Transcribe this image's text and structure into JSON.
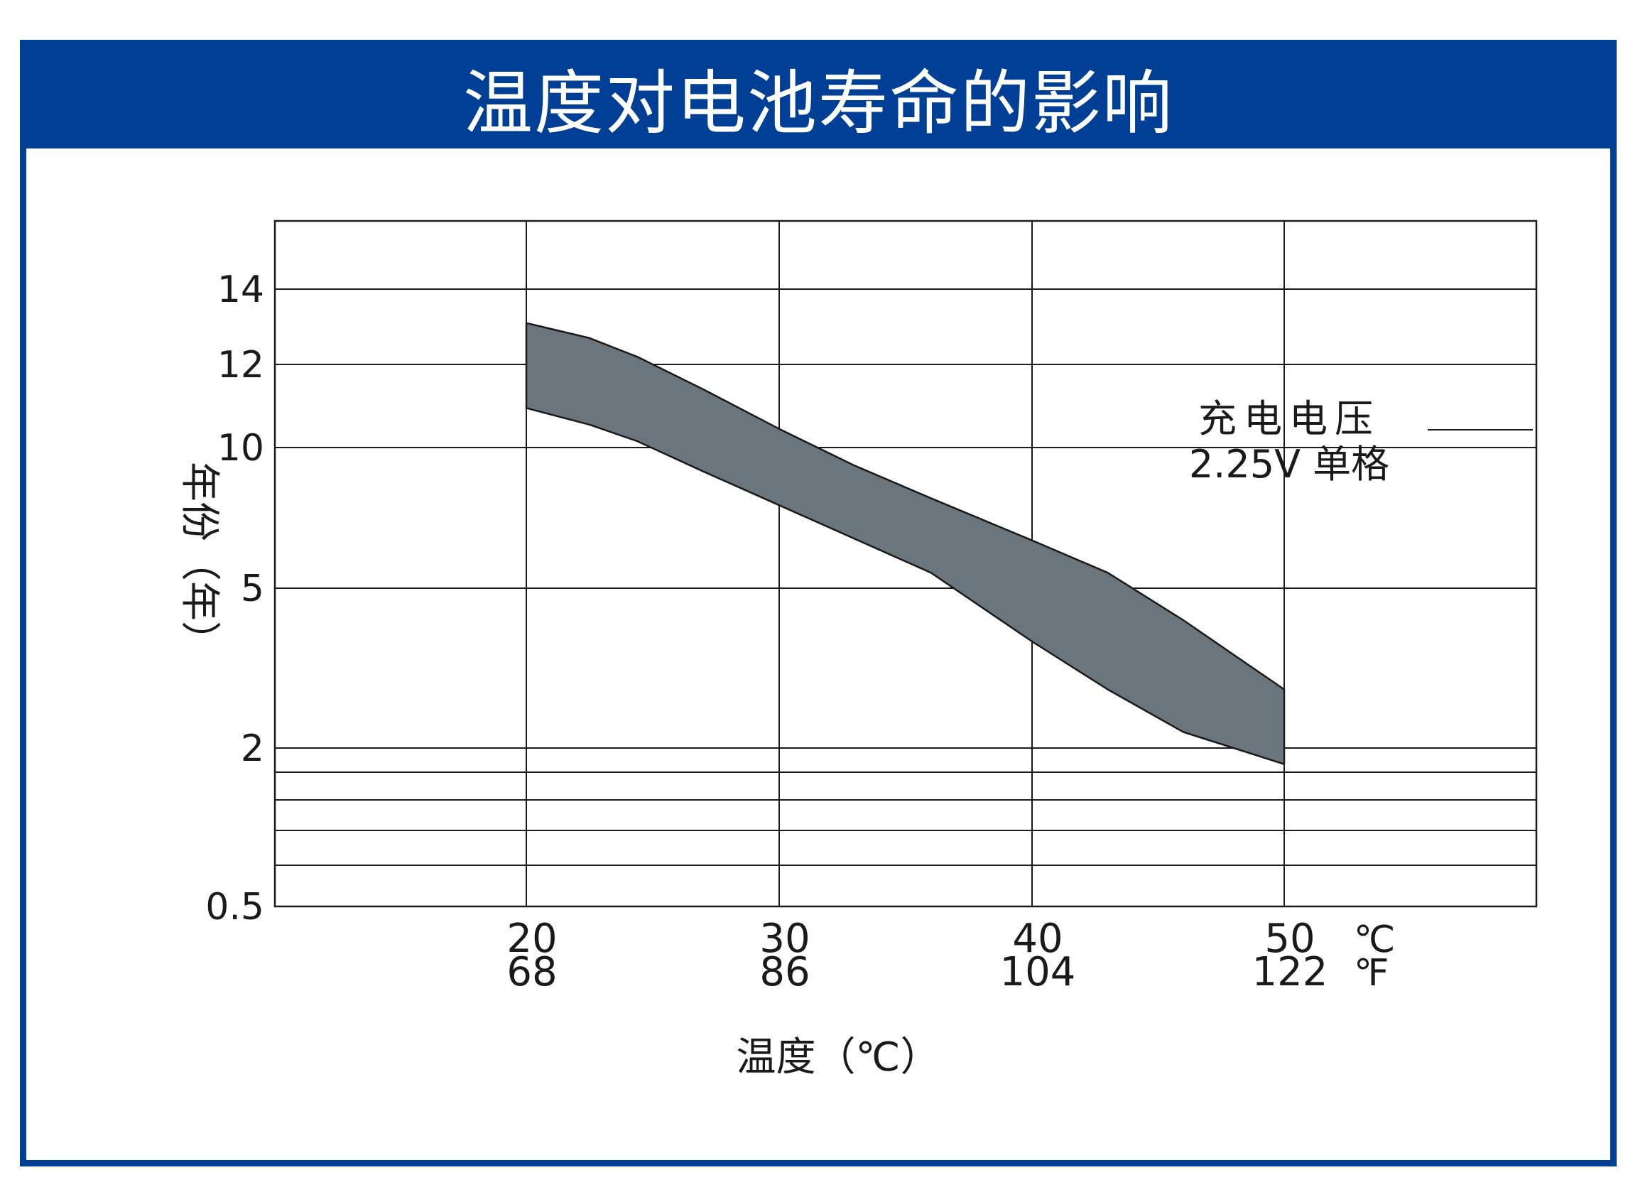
{
  "title": "温度对电池寿命的影响",
  "colors": {
    "frame": "#003f96",
    "band_fill": "#6b757e",
    "band_stroke": "#1a1a1a",
    "grid": "#1a1a1a"
  },
  "chart_data": {
    "type": "area",
    "title": "温度对电池寿命的影响",
    "xlabel": "温度（℃）",
    "ylabel": "年份（年）",
    "x_unit_c": "℃",
    "x_unit_f": "℉",
    "x_ticks_c": [
      20,
      30,
      40,
      50
    ],
    "x_ticks_f": [
      68,
      86,
      104,
      122
    ],
    "x_tick_labels_c": [
      "20",
      "30",
      "40",
      "50"
    ],
    "x_tick_labels_f": [
      "68",
      "86",
      "104",
      "122"
    ],
    "y_ticks": [
      0.5,
      2,
      5,
      10,
      12,
      14
    ],
    "y_tick_labels": [
      "0.5",
      "2",
      "5",
      "10",
      "12",
      "14"
    ],
    "extra_gridlines_y": [
      1.0,
      1.3,
      1.65,
      1.85
    ],
    "xlim": [
      10,
      60
    ],
    "grid": true,
    "annotation": {
      "line1": "充电电压",
      "line2": "2.25V 单格"
    },
    "series": [
      {
        "x": [
          20,
          22.5,
          24.4,
          27,
          30,
          33,
          36,
          40,
          43,
          46,
          50
        ],
        "values": [
          13.1,
          12.7,
          12.2,
          11.4,
          10.45,
          9.35,
          8.2,
          6.7,
          5.55,
          4.4,
          3.1
        ]
      },
      {
        "x": [
          20,
          22.5,
          24.4,
          27,
          30,
          33,
          36,
          40,
          43,
          46,
          50
        ],
        "values": [
          10.95,
          10.55,
          10.15,
          9.15,
          7.95,
          6.75,
          5.55,
          4.0,
          3.1,
          2.3,
          1.9
        ]
      }
    ]
  }
}
